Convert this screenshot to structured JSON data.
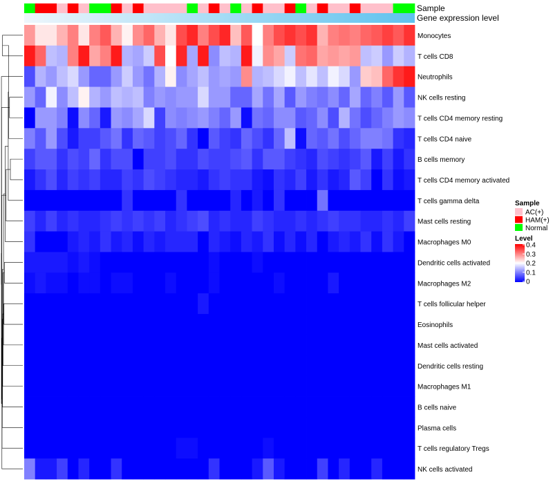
{
  "chart_data": {
    "type": "heatmap",
    "annotation_tracks": [
      "Sample",
      "Gene expression level"
    ],
    "samples": [
      "Normal",
      "HAM(+)",
      "HAM(+)",
      "AC(+)",
      "HAM(+)",
      "AC(+)",
      "Normal",
      "Normal",
      "HAM(+)",
      "AC(+)",
      "HAM(+)",
      "AC(+)",
      "AC(+)",
      "AC(+)",
      "AC(+)",
      "Normal",
      "AC(+)",
      "HAM(+)",
      "AC(+)",
      "Normal",
      "AC(+)",
      "HAM(+)",
      "AC(+)",
      "AC(+)",
      "HAM(+)",
      "Normal",
      "AC(+)",
      "HAM(+)",
      "AC(+)",
      "AC(+)",
      "HAM(+)",
      "AC(+)",
      "AC(+)",
      "AC(+)",
      "Normal",
      "Normal"
    ],
    "gene_expression_gradient": [
      "#eef6fc",
      "#5fc2ee"
    ],
    "rows": [
      "Monocytes",
      "T cells CD8",
      "Neutrophils",
      "NK cells resting",
      "T cells CD4 memory resting",
      "T cells CD4 naive",
      "B cells memory",
      "T cells CD4 memory activated",
      "T cells gamma delta",
      "Mast cells resting",
      "Macrophages M0",
      "Dendritic cells activated",
      "Macrophages M2",
      "T cells follicular helper",
      "Eosinophils",
      "Mast cells activated",
      "Dendritic cells resting",
      "Macrophages M1",
      "B cells naive",
      "Plasma cells",
      "T cells regulatory  Tregs",
      "NK cells activated"
    ],
    "values": [
      [
        0.28,
        0.22,
        0.22,
        0.26,
        0.3,
        0.22,
        0.3,
        0.33,
        0.26,
        0.21,
        0.29,
        0.32,
        0.26,
        0.22,
        0.34,
        0.37,
        0.3,
        0.34,
        0.37,
        0.25,
        0.33,
        0.2,
        0.3,
        0.34,
        0.36,
        0.34,
        0.36,
        0.26,
        0.3,
        0.31,
        0.3,
        0.32,
        0.33,
        0.35,
        0.33,
        0.36
      ],
      [
        0.38,
        0.32,
        0.15,
        0.14,
        0.3,
        0.38,
        0.27,
        0.3,
        0.38,
        0.14,
        0.13,
        0.16,
        0.34,
        0.2,
        0.37,
        0.13,
        0.38,
        0.11,
        0.15,
        0.14,
        0.38,
        0.19,
        0.29,
        0.27,
        0.16,
        0.31,
        0.32,
        0.27,
        0.28,
        0.27,
        0.28,
        0.15,
        0.16,
        0.12,
        0.16,
        0.14
      ],
      [
        0.06,
        0.14,
        0.12,
        0.15,
        0.17,
        0.12,
        0.08,
        0.08,
        0.12,
        0.16,
        0.12,
        0.09,
        0.14,
        0.21,
        0.11,
        0.13,
        0.15,
        0.12,
        0.13,
        0.12,
        0.29,
        0.14,
        0.15,
        0.17,
        0.19,
        0.15,
        0.18,
        0.15,
        0.19,
        0.17,
        0.12,
        0.24,
        0.25,
        0.32,
        0.36,
        0.38
      ],
      [
        0.12,
        0.08,
        0.19,
        0.11,
        0.15,
        0.21,
        0.14,
        0.12,
        0.15,
        0.14,
        0.15,
        0.1,
        0.12,
        0.11,
        0.12,
        0.12,
        0.17,
        0.12,
        0.12,
        0.08,
        0.08,
        0.13,
        0.09,
        0.13,
        0.07,
        0.12,
        0.1,
        0.09,
        0.11,
        0.08,
        0.13,
        0.08,
        0.1,
        0.07,
        0.12,
        0.07
      ],
      [
        0.0,
        0.12,
        0.12,
        0.1,
        0.01,
        0.11,
        0.08,
        0.02,
        0.12,
        0.11,
        0.13,
        0.17,
        0.05,
        0.11,
        0.1,
        0.11,
        0.12,
        0.1,
        0.08,
        0.12,
        0.01,
        0.09,
        0.08,
        0.11,
        0.11,
        0.07,
        0.08,
        0.11,
        0.06,
        0.14,
        0.09,
        0.06,
        0.08,
        0.1,
        0.12,
        0.11
      ],
      [
        0.1,
        0.07,
        0.12,
        0.06,
        0.02,
        0.05,
        0.05,
        0.07,
        0.09,
        0.04,
        0.08,
        0.07,
        0.05,
        0.06,
        0.08,
        0.04,
        0.0,
        0.07,
        0.05,
        0.04,
        0.08,
        0.06,
        0.04,
        0.08,
        0.15,
        0.01,
        0.08,
        0.07,
        0.09,
        0.06,
        0.08,
        0.1,
        0.1,
        0.09,
        0.04,
        0.03
      ],
      [
        0.05,
        0.07,
        0.07,
        0.04,
        0.06,
        0.05,
        0.08,
        0.04,
        0.06,
        0.06,
        0.0,
        0.05,
        0.05,
        0.06,
        0.04,
        0.04,
        0.06,
        0.05,
        0.05,
        0.06,
        0.07,
        0.04,
        0.07,
        0.07,
        0.05,
        0.04,
        0.03,
        0.06,
        0.05,
        0.04,
        0.05,
        0.07,
        0.02,
        0.05,
        0.02,
        0.04
      ],
      [
        0.02,
        0.04,
        0.06,
        0.03,
        0.05,
        0.04,
        0.05,
        0.03,
        0.03,
        0.05,
        0.04,
        0.06,
        0.05,
        0.04,
        0.03,
        0.03,
        0.02,
        0.04,
        0.05,
        0.04,
        0.04,
        0.02,
        0.01,
        0.04,
        0.03,
        0.05,
        0.02,
        0.04,
        0.02,
        0.03,
        0.07,
        0.05,
        0.0,
        0.04,
        0.01,
        0.02
      ],
      [
        0.0,
        0.0,
        0.0,
        0.0,
        0.0,
        0.0,
        0.0,
        0.0,
        0.0,
        0.04,
        0.0,
        0.0,
        0.0,
        0.0,
        0.04,
        0.0,
        0.0,
        0.0,
        0.0,
        0.03,
        0.0,
        0.02,
        0.0,
        0.04,
        0.0,
        0.0,
        0.0,
        0.09,
        0.0,
        0.0,
        0.0,
        0.0,
        0.0,
        0.0,
        0.0,
        0.0
      ],
      [
        0.05,
        0.03,
        0.05,
        0.03,
        0.04,
        0.03,
        0.03,
        0.04,
        0.05,
        0.04,
        0.05,
        0.04,
        0.05,
        0.03,
        0.04,
        0.05,
        0.06,
        0.03,
        0.04,
        0.03,
        0.03,
        0.05,
        0.04,
        0.03,
        0.03,
        0.04,
        0.03,
        0.04,
        0.05,
        0.04,
        0.04,
        0.03,
        0.03,
        0.04,
        0.03,
        0.05
      ],
      [
        0.04,
        0.0,
        0.0,
        0.0,
        0.02,
        0.03,
        0.02,
        0.04,
        0.02,
        0.03,
        0.01,
        0.03,
        0.02,
        0.03,
        0.03,
        0.03,
        0.0,
        0.03,
        0.02,
        0.01,
        0.03,
        0.02,
        0.04,
        0.01,
        0.03,
        0.01,
        0.03,
        0.0,
        0.02,
        0.03,
        0.02,
        0.04,
        0.01,
        0.04,
        0.02,
        0.0
      ],
      [
        0.02,
        0.02,
        0.02,
        0.02,
        0.01,
        0.02,
        0.01,
        0.0,
        0.0,
        0.0,
        0.0,
        0.0,
        0.0,
        0.0,
        0.0,
        0.0,
        0.0,
        0.01,
        0.0,
        0.0,
        0.0,
        0.01,
        0.0,
        0.0,
        0.0,
        0.0,
        0.0,
        0.0,
        0.0,
        0.0,
        0.0,
        0.0,
        0.0,
        0.0,
        0.0,
        0.0
      ],
      [
        0.01,
        0.02,
        0.01,
        0.01,
        0.0,
        0.01,
        0.01,
        0.0,
        0.01,
        0.01,
        0.0,
        0.0,
        0.0,
        0.01,
        0.0,
        0.0,
        0.0,
        0.01,
        0.0,
        0.0,
        0.0,
        0.0,
        0.0,
        0.01,
        0.0,
        0.0,
        0.0,
        0.0,
        0.02,
        0.0,
        0.0,
        0.0,
        0.0,
        0.0,
        0.0,
        0.0
      ],
      [
        0.0,
        0.0,
        0.0,
        0.0,
        0.0,
        0.0,
        0.0,
        0.0,
        0.0,
        0.0,
        0.0,
        0.0,
        0.0,
        0.0,
        0.0,
        0.0,
        0.02,
        0.0,
        0.0,
        0.0,
        0.0,
        0.0,
        0.0,
        0.0,
        0.0,
        0.0,
        0.0,
        0.0,
        0.0,
        0.0,
        0.0,
        0.0,
        0.0,
        0.0,
        0.0,
        0.0
      ],
      [
        0.0,
        0.0,
        0.0,
        0.0,
        0.0,
        0.0,
        0.0,
        0.0,
        0.0,
        0.0,
        0.0,
        0.0,
        0.0,
        0.0,
        0.0,
        0.0,
        0.0,
        0.0,
        0.0,
        0.0,
        0.0,
        0.0,
        0.0,
        0.0,
        0.0,
        0.0,
        0.0,
        0.0,
        0.0,
        0.0,
        0.0,
        0.0,
        0.0,
        0.0,
        0.0,
        0.0
      ],
      [
        0.0,
        0.0,
        0.0,
        0.0,
        0.0,
        0.0,
        0.0,
        0.0,
        0.0,
        0.0,
        0.0,
        0.0,
        0.0,
        0.0,
        0.0,
        0.0,
        0.0,
        0.0,
        0.0,
        0.0,
        0.0,
        0.0,
        0.0,
        0.0,
        0.0,
        0.0,
        0.0,
        0.0,
        0.0,
        0.0,
        0.0,
        0.0,
        0.0,
        0.0,
        0.0,
        0.0
      ],
      [
        0.0,
        0.0,
        0.0,
        0.0,
        0.0,
        0.0,
        0.0,
        0.0,
        0.0,
        0.0,
        0.0,
        0.0,
        0.0,
        0.0,
        0.0,
        0.0,
        0.0,
        0.0,
        0.0,
        0.0,
        0.0,
        0.0,
        0.0,
        0.0,
        0.0,
        0.0,
        0.0,
        0.0,
        0.0,
        0.0,
        0.0,
        0.0,
        0.0,
        0.0,
        0.0,
        0.0
      ],
      [
        0.0,
        0.0,
        0.0,
        0.0,
        0.0,
        0.0,
        0.0,
        0.0,
        0.0,
        0.0,
        0.0,
        0.0,
        0.0,
        0.0,
        0.0,
        0.0,
        0.0,
        0.0,
        0.0,
        0.0,
        0.0,
        0.0,
        0.0,
        0.0,
        0.0,
        0.0,
        0.0,
        0.0,
        0.0,
        0.0,
        0.0,
        0.0,
        0.0,
        0.0,
        0.0,
        0.0
      ],
      [
        0.0,
        0.0,
        0.0,
        0.0,
        0.0,
        0.0,
        0.0,
        0.0,
        0.0,
        0.0,
        0.0,
        0.0,
        0.0,
        0.0,
        0.0,
        0.0,
        0.0,
        0.0,
        0.0,
        0.0,
        0.0,
        0.0,
        0.0,
        0.0,
        0.0,
        0.0,
        0.0,
        0.0,
        0.0,
        0.0,
        0.0,
        0.0,
        0.0,
        0.0,
        0.0,
        0.0
      ],
      [
        0.0,
        0.0,
        0.0,
        0.0,
        0.0,
        0.0,
        0.0,
        0.0,
        0.0,
        0.0,
        0.0,
        0.0,
        0.0,
        0.0,
        0.0,
        0.0,
        0.0,
        0.0,
        0.0,
        0.0,
        0.0,
        0.0,
        0.0,
        0.0,
        0.0,
        0.0,
        0.0,
        0.0,
        0.0,
        0.0,
        0.0,
        0.0,
        0.0,
        0.0,
        0.0,
        0.0
      ],
      [
        0.0,
        0.0,
        0.0,
        0.0,
        0.0,
        0.0,
        0.0,
        0.0,
        0.0,
        0.0,
        0.0,
        0.0,
        0.0,
        0.0,
        0.01,
        0.01,
        0.0,
        0.0,
        0.0,
        0.0,
        0.0,
        0.0,
        0.01,
        0.0,
        0.0,
        0.0,
        0.0,
        0.0,
        0.0,
        0.0,
        0.0,
        0.0,
        0.0,
        0.0,
        0.0,
        0.0
      ],
      [
        0.1,
        0.02,
        0.02,
        0.05,
        0.0,
        0.03,
        0.0,
        0.0,
        0.04,
        0.0,
        0.0,
        0.0,
        0.0,
        0.0,
        0.0,
        0.0,
        0.0,
        0.04,
        0.0,
        0.0,
        0.0,
        0.02,
        0.07,
        0.02,
        0.0,
        0.0,
        0.0,
        0.05,
        0.0,
        0.03,
        0.0,
        0.0,
        0.03,
        0.0,
        0.0,
        0.0
      ]
    ],
    "dendrogram_merges": [
      [
        0,
        1,
        0.95
      ],
      [
        3,
        4,
        0.62
      ],
      [
        22,
        5,
        0.66
      ],
      [
        6,
        7,
        0.58
      ],
      [
        24,
        8,
        0.68
      ],
      [
        25,
        9,
        0.78
      ],
      [
        26,
        10,
        0.82
      ],
      [
        11,
        12,
        0.86
      ],
      [
        13,
        14,
        0.88
      ],
      [
        28,
        15,
        0.9
      ],
      [
        29,
        16,
        0.92
      ],
      [
        30,
        17,
        0.94
      ],
      [
        31,
        18,
        0.95
      ],
      [
        32,
        19,
        0.96
      ],
      [
        33,
        20,
        0.97
      ],
      [
        34,
        21,
        0.975
      ],
      [
        27,
        35,
        0.985
      ],
      [
        23,
        36,
        0.99
      ],
      [
        2,
        37,
        0.998
      ],
      [
        38,
        39,
        1.0
      ]
    ],
    "legend": {
      "sample": {
        "title": "Sample",
        "items": [
          {
            "label": "AC(+)",
            "color": "#ffc0cb"
          },
          {
            "label": "HAM(+)",
            "color": "#ff0000"
          },
          {
            "label": "Normal",
            "color": "#00ff00"
          }
        ]
      },
      "level": {
        "title": "Level",
        "ticks": [
          "0.4",
          "0.3",
          "0.2",
          "0.1",
          "0"
        ],
        "range": [
          0,
          0.4
        ],
        "colors": [
          "#0000ff",
          "#ffffff",
          "#ff0000"
        ]
      }
    }
  }
}
